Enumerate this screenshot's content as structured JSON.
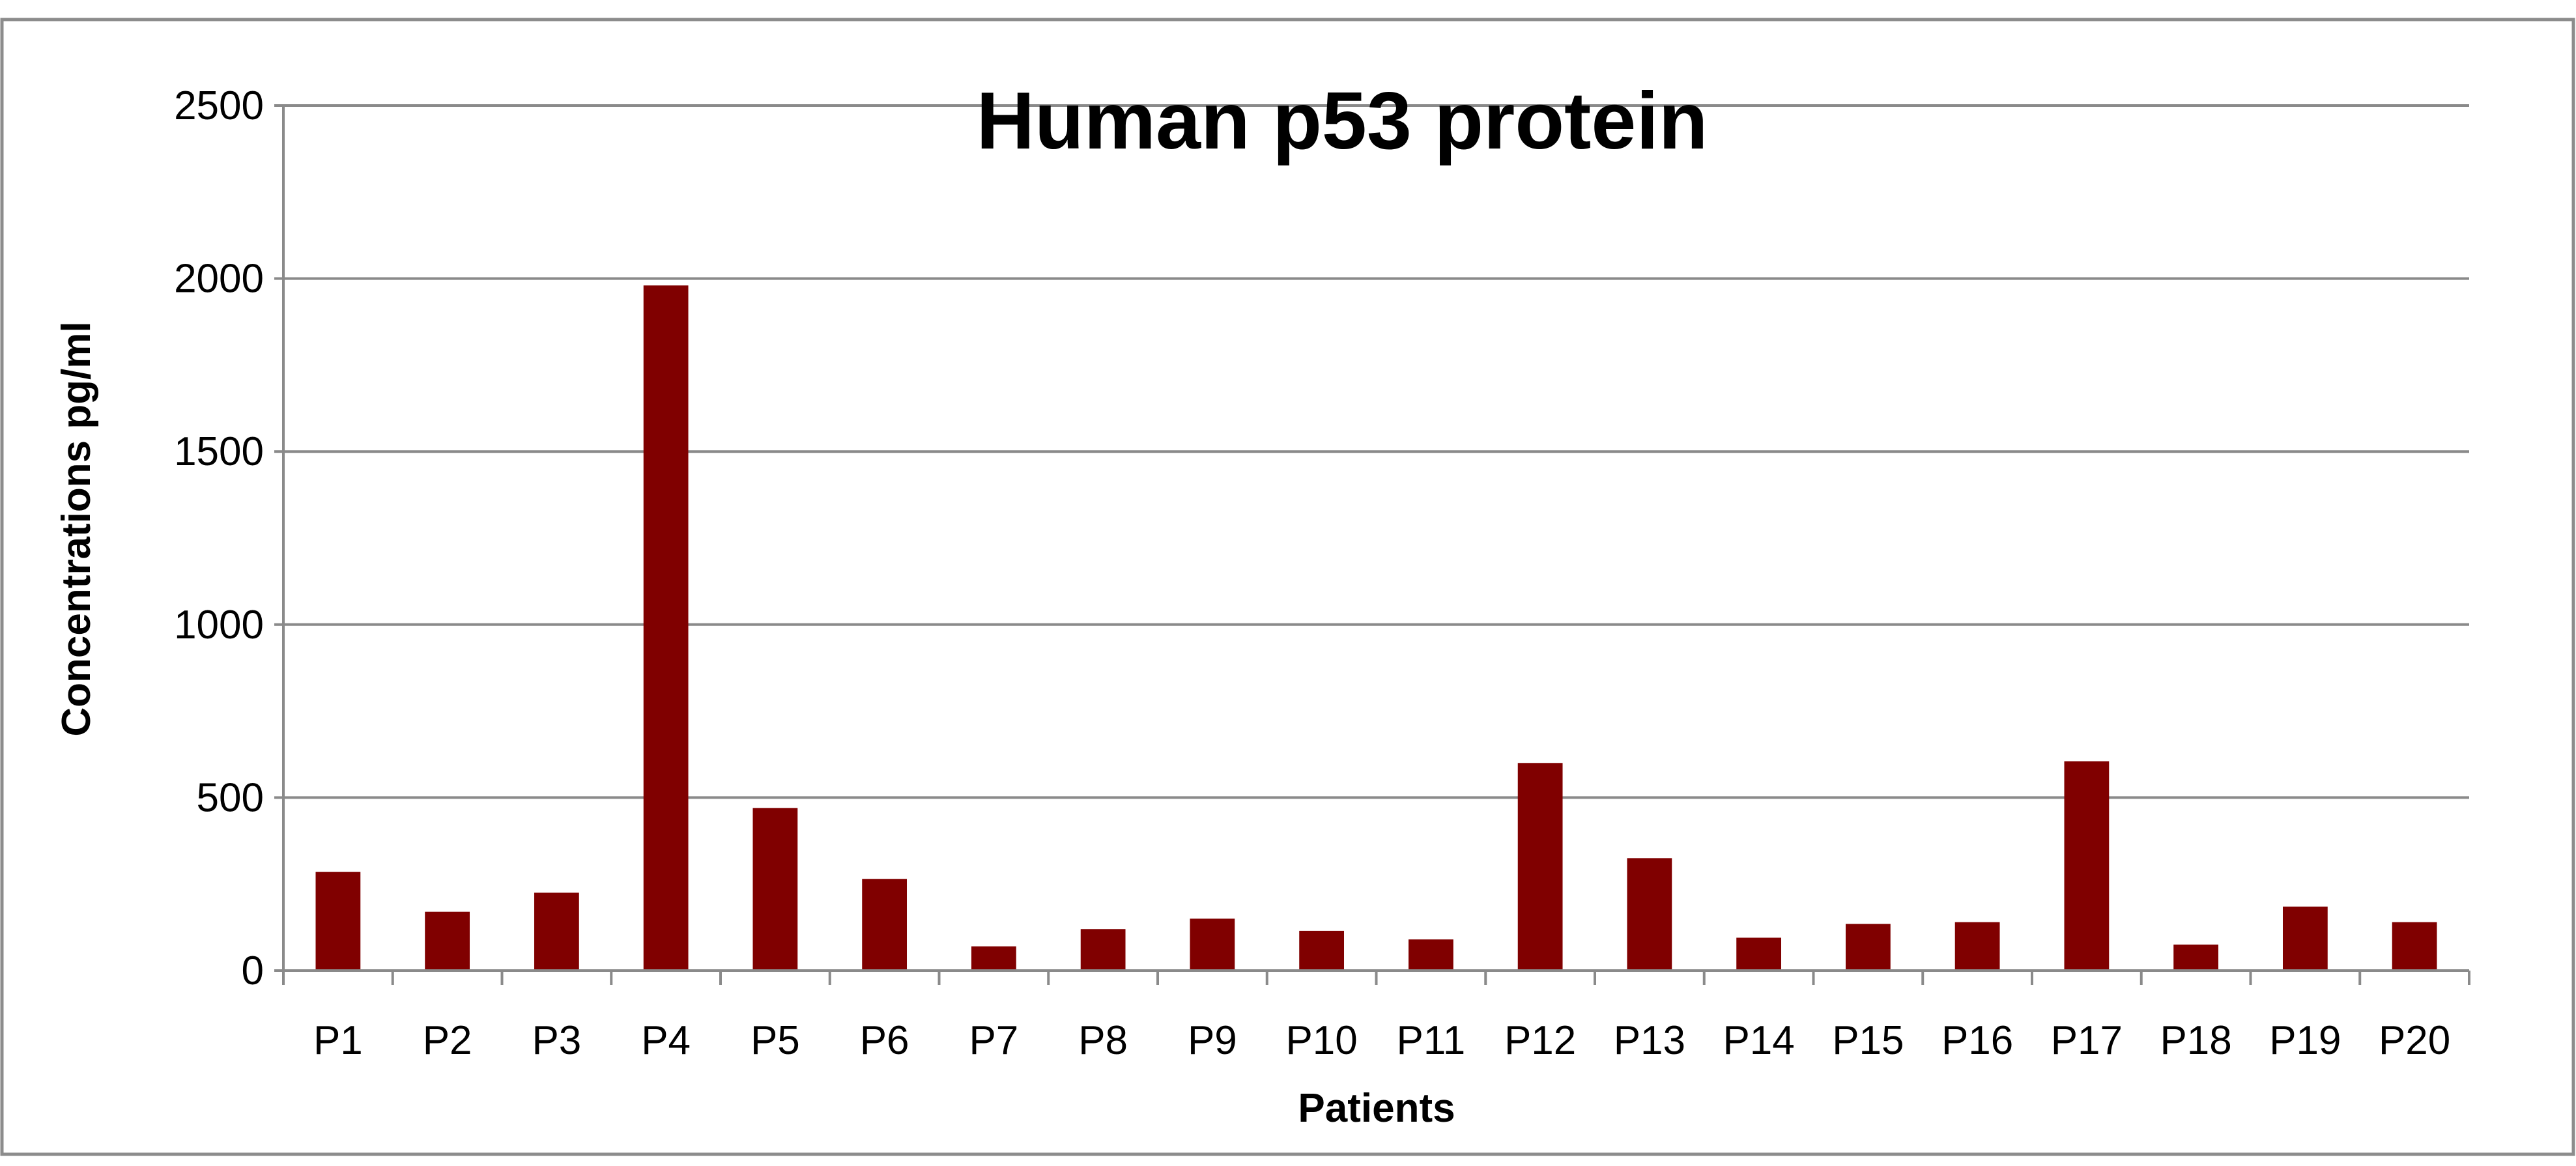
{
  "chart_data": {
    "type": "bar",
    "title": "Human p53 protein",
    "xlabel": "Patients",
    "ylabel": "Concentrations pg/ml",
    "ylim": [
      0,
      2500
    ],
    "yticks": [
      0,
      500,
      1000,
      1500,
      2000,
      2500
    ],
    "grid": true,
    "legend": "none",
    "categories": [
      "P1",
      "P2",
      "P3",
      "P4",
      "P5",
      "P6",
      "P7",
      "P8",
      "P9",
      "P10",
      "P11",
      "P12",
      "P13",
      "P14",
      "P15",
      "P16",
      "P17",
      "P18",
      "P19",
      "P20"
    ],
    "series": [
      {
        "values": [
          285,
          170,
          225,
          1980,
          470,
          265,
          70,
          120,
          150,
          115,
          90,
          600,
          325,
          95,
          135,
          140,
          605,
          75,
          185,
          140
        ],
        "color": "#800000"
      }
    ]
  }
}
